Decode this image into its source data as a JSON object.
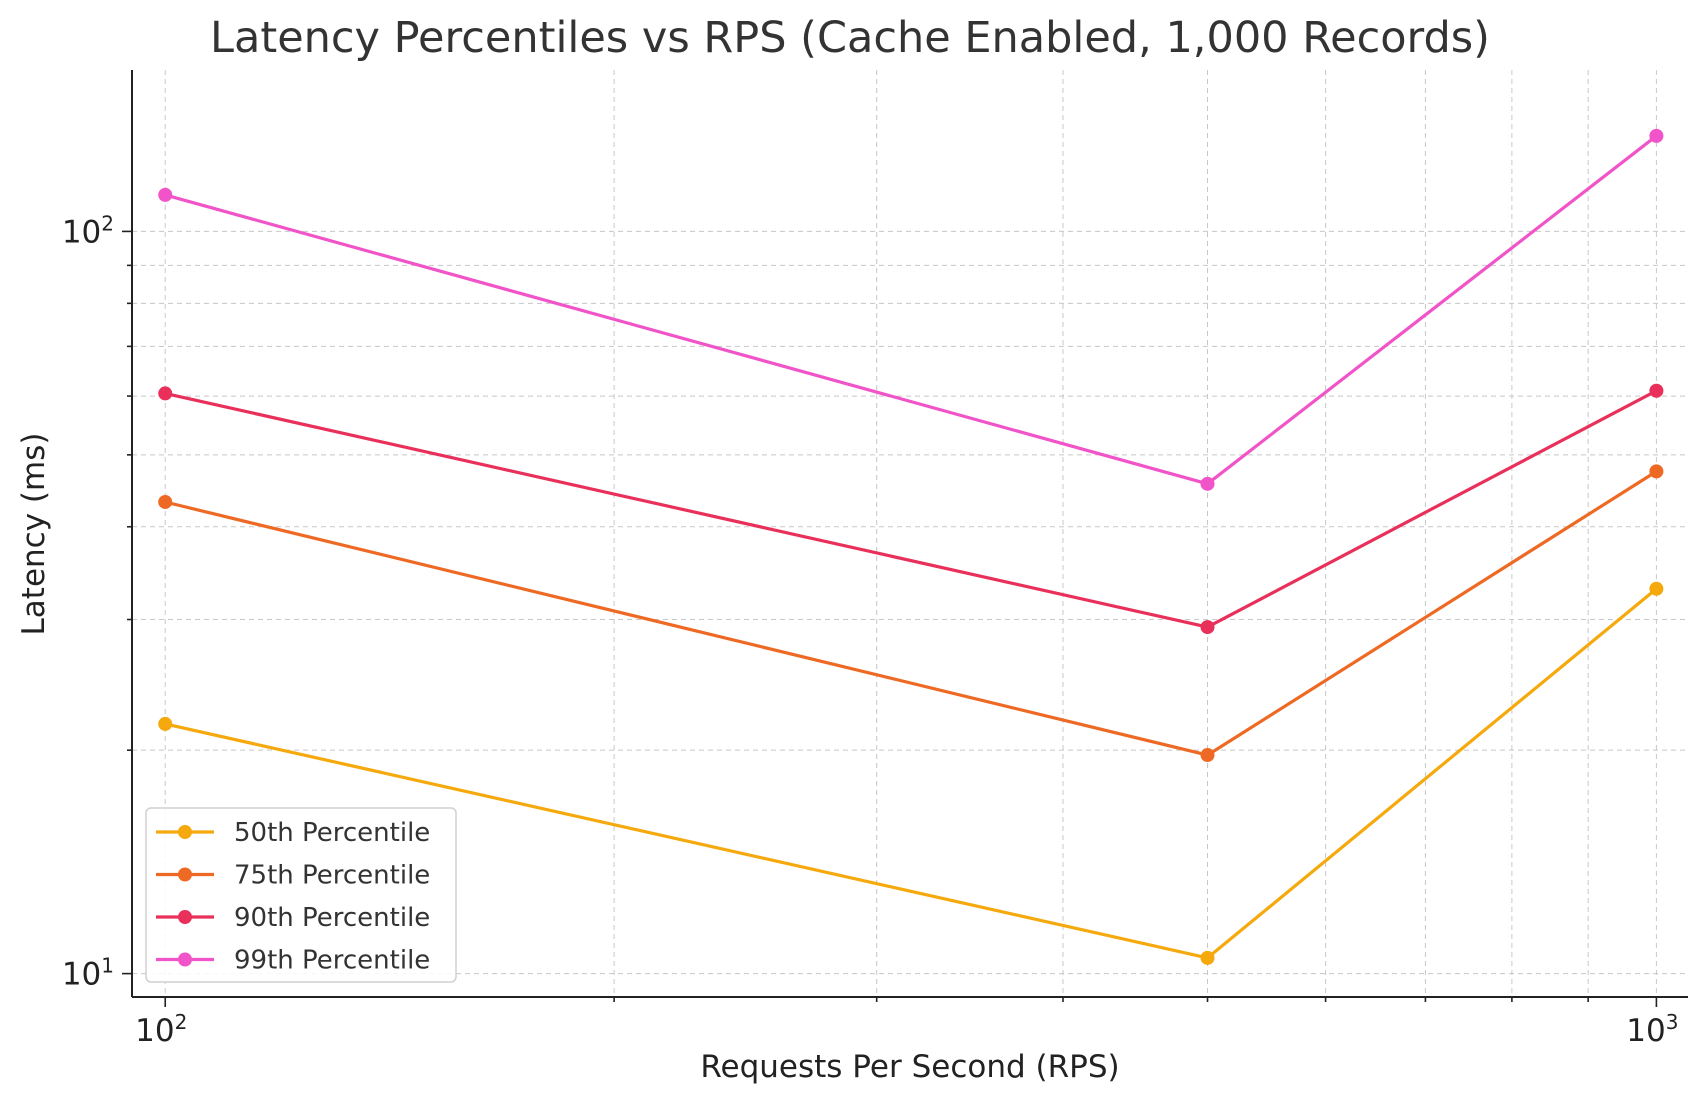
{
  "chart_data": {
    "type": "line",
    "title": "Latency Percentiles vs RPS (Cache Enabled, 1,000 Records)",
    "xlabel": "Requests Per Second (RPS)",
    "ylabel": "Latency (ms)",
    "xscale": "log",
    "yscale": "log",
    "xlim": [
      95,
      1050
    ],
    "ylim": [
      9.3,
      165
    ],
    "grid": true,
    "legend_position": "lower-left",
    "x_ticks": [
      {
        "value": 100,
        "base": "10",
        "exp": "2"
      },
      {
        "value": 1000,
        "base": "10",
        "exp": "3"
      }
    ],
    "y_ticks": [
      {
        "value": 10,
        "base": "10",
        "exp": "1"
      },
      {
        "value": 100,
        "base": "10",
        "exp": "2"
      }
    ],
    "x": [
      100,
      500,
      1000
    ],
    "series": [
      {
        "name": "50th Percentile",
        "color": "#f5a90c",
        "values": [
          21.7,
          10.5,
          33.0
        ]
      },
      {
        "name": "75th Percentile",
        "color": "#ee6a24",
        "values": [
          43.2,
          19.7,
          47.5
        ]
      },
      {
        "name": "90th Percentile",
        "color": "#e8305a",
        "values": [
          60.5,
          29.3,
          61.0
        ]
      },
      {
        "name": "99th Percentile",
        "color": "#f054c8",
        "values": [
          112.0,
          45.7,
          134.5
        ]
      }
    ]
  }
}
